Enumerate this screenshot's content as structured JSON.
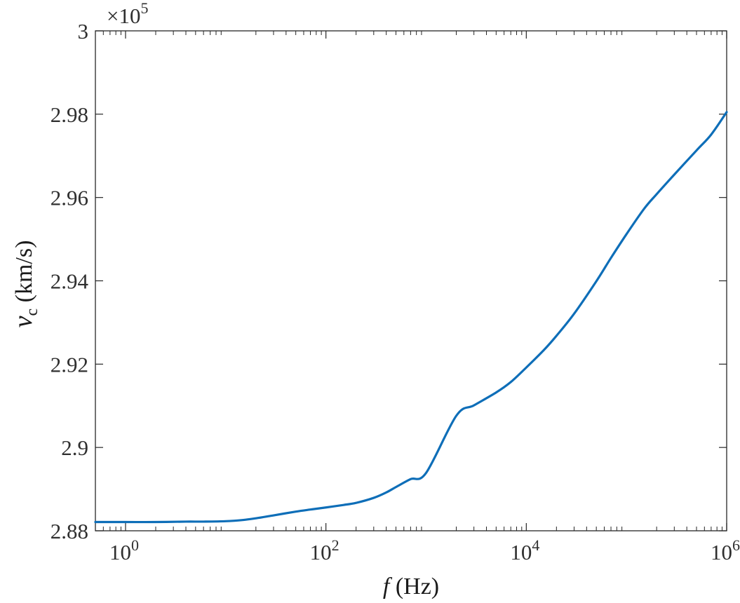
{
  "chart_data": {
    "type": "line",
    "x_scale": "log",
    "xlabel": {
      "symbol": "f",
      "unit": "(Hz)"
    },
    "ylabel": {
      "symbol": "v",
      "subscript": "c",
      "unit": "(km/s)"
    },
    "y_multiplier": {
      "base": "×10",
      "exponent": "5"
    },
    "xlim": [
      0.5,
      1000000
    ],
    "ylim": [
      2.88,
      3.0
    ],
    "xticks": [
      {
        "value": 1,
        "base": "10",
        "exp": "0"
      },
      {
        "value": 100,
        "base": "10",
        "exp": "2"
      },
      {
        "value": 10000,
        "base": "10",
        "exp": "4"
      },
      {
        "value": 1000000,
        "base": "10",
        "exp": "6"
      }
    ],
    "yticks": [
      {
        "value": 2.88,
        "label": "2.88"
      },
      {
        "value": 2.9,
        "label": "2.9"
      },
      {
        "value": 2.92,
        "label": "2.92"
      },
      {
        "value": 2.94,
        "label": "2.94"
      },
      {
        "value": 2.96,
        "label": "2.96"
      },
      {
        "value": 2.98,
        "label": "2.98"
      },
      {
        "value": 3.0,
        "label": "3"
      }
    ],
    "grid": false,
    "series": [
      {
        "color": "#0e6eb8",
        "x": [
          0.5,
          1,
          2,
          4,
          6,
          10,
          15,
          20,
          30,
          50,
          70,
          100,
          150,
          200,
          300,
          400,
          500,
          700,
          1000,
          2000,
          3000,
          5000,
          7000,
          10000,
          15000,
          20000,
          30000,
          50000,
          70000,
          100000,
          150000,
          200000,
          300000,
          500000,
          700000,
          1000000
        ],
        "y": [
          2.8821,
          2.8821,
          2.8821,
          2.8822,
          2.8822,
          2.8823,
          2.8826,
          2.883,
          2.8837,
          2.8846,
          2.8851,
          2.8856,
          2.8862,
          2.8867,
          2.8879,
          2.8892,
          2.8905,
          2.8924,
          2.8939,
          2.9076,
          2.9101,
          2.9132,
          2.9157,
          2.9192,
          2.9234,
          2.9268,
          2.9321,
          2.9399,
          2.9455,
          2.9512,
          2.9573,
          2.9608,
          2.9655,
          2.9713,
          2.9751,
          2.9805
        ]
      }
    ]
  }
}
